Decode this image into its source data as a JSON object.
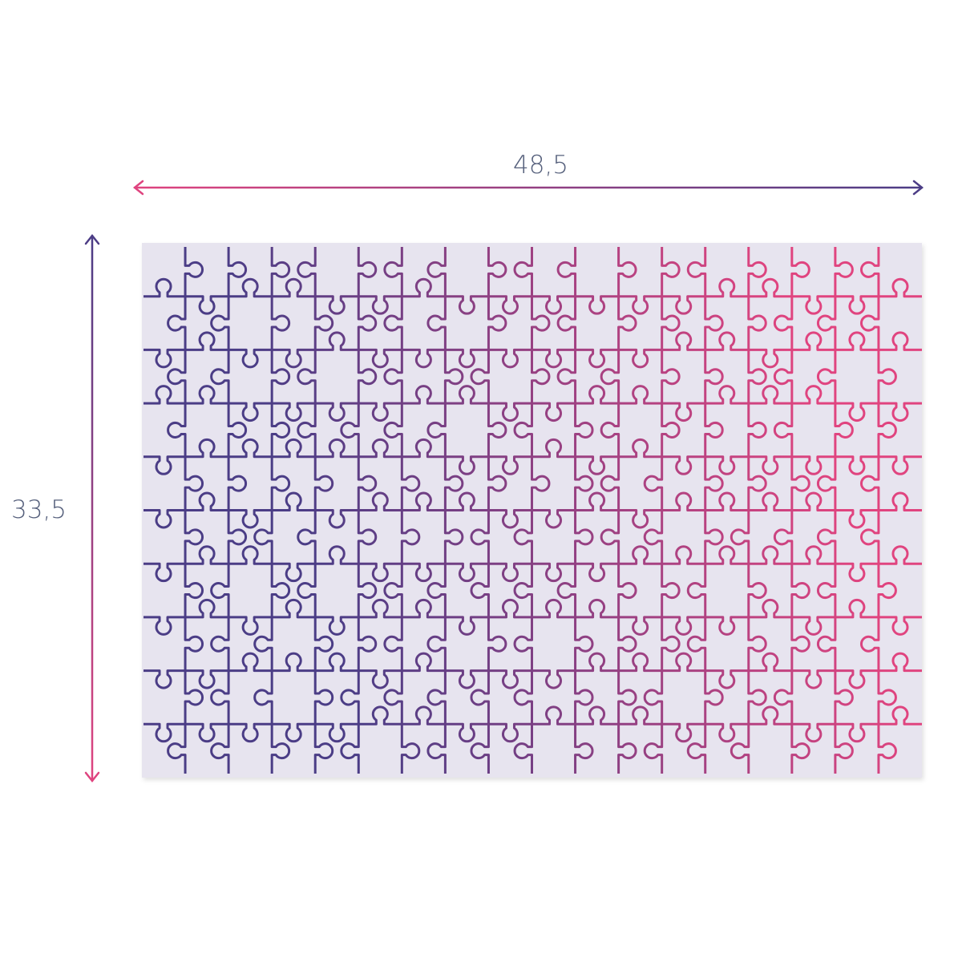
{
  "dimensions": {
    "width_label": "48,5",
    "height_label": "33,5"
  },
  "colors": {
    "purple": "#4b3d86",
    "pink": "#e0447f",
    "board": "#e7e4ef",
    "text": "#56607c"
  }
}
